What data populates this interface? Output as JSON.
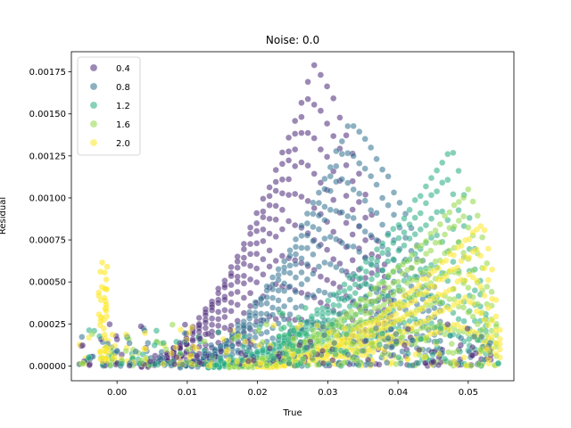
{
  "chart_data": {
    "type": "scatter",
    "title": "Noise: 0.0",
    "xlabel": "True",
    "ylabel": "Residual",
    "xlim": [
      -0.0065,
      0.0565
    ],
    "ylim": [
      -8.8e-05,
      0.00187
    ],
    "xticks": [
      0.0,
      0.01,
      0.02,
      0.03,
      0.04,
      0.05
    ],
    "xtick_labels": [
      "0.00",
      "0.01",
      "0.02",
      "0.03",
      "0.04",
      "0.05"
    ],
    "yticks": [
      0.0,
      0.00025,
      0.0005,
      0.00075,
      0.001,
      0.00125,
      0.0015,
      0.00175
    ],
    "ytick_labels": [
      "0.00000",
      "0.00025",
      "0.00050",
      "0.00075",
      "0.00100",
      "0.00125",
      "0.00150",
      "0.00175"
    ],
    "grid": false,
    "legend_position": "top-left",
    "colormap": "viridis",
    "series": [
      {
        "name": "0.4",
        "color": "#482677",
        "curve": {
          "x_start": 0.0035,
          "x_end": 0.039,
          "peak_x": 0.028,
          "peak_y": 0.00178,
          "n_bands": 9
        }
      },
      {
        "name": "0.8",
        "color": "#2d708e",
        "curve": {
          "x_start": 0.009,
          "x_end": 0.046,
          "peak_x": 0.033,
          "peak_y": 0.00145,
          "n_bands": 8
        }
      },
      {
        "name": "1.2",
        "color": "#25ab82",
        "curve": {
          "x_start": 0.013,
          "x_end": 0.0525,
          "peak_x": 0.0475,
          "peak_y": 0.00128,
          "n_bands": 7
        }
      },
      {
        "name": "1.6",
        "color": "#8fd744",
        "curve": {
          "x_start": 0.016,
          "x_end": 0.054,
          "peak_x": 0.05,
          "peak_y": 0.00105,
          "n_bands": 6
        }
      },
      {
        "name": "2.0",
        "color": "#fde725",
        "curve": {
          "x_start": 0.02,
          "x_end": 0.0545,
          "peak_x": 0.052,
          "peak_y": 0.00085,
          "n_bands": 5
        }
      }
    ],
    "annotations": [
      {
        "description": "yellow spike near x=-0.002",
        "x": -0.002,
        "y": 0.00063,
        "color": "#fde725"
      },
      {
        "description": "green cluster near x=0.025",
        "x": 0.025,
        "y": 0.00035,
        "color": "#35b779"
      }
    ]
  }
}
